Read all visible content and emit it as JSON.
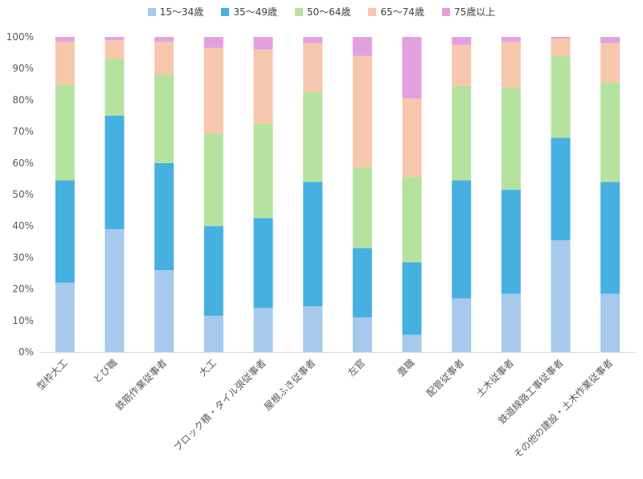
{
  "chart_data": {
    "type": "bar",
    "stacked": true,
    "categories": [
      "型枠大工",
      "とび職",
      "鉄筋作業従事者",
      "大工",
      "ブロック積・タイル張従事者",
      "屋根ふき従事者",
      "左官",
      "畳職",
      "配管従事者",
      "土木従事者",
      "鉄道線路工事従事者",
      "その他の建設・土木作業従事者"
    ],
    "series": [
      {
        "name": "15～34歳",
        "color": "#a6c9ec",
        "values": [
          22,
          39,
          26,
          11.5,
          14,
          14.5,
          11,
          5.5,
          17,
          18.5,
          35.5,
          18.5
        ]
      },
      {
        "name": "35～49歳",
        "color": "#46b0e1",
        "values": [
          32.5,
          36,
          34,
          28.5,
          28.5,
          39.5,
          22,
          23,
          37.5,
          33,
          32.5,
          35.5
        ]
      },
      {
        "name": "50～64歳",
        "color": "#b6e2a0",
        "values": [
          30.5,
          18,
          28,
          29.5,
          30,
          28.5,
          25.5,
          27,
          30,
          32.5,
          26,
          31.5
        ]
      },
      {
        "name": "65～74歳",
        "color": "#f7c7ad",
        "values": [
          13.5,
          6,
          10.5,
          27,
          23.5,
          15.5,
          35.5,
          25,
          13,
          14.5,
          5.5,
          12.5
        ]
      },
      {
        "name": "75歳以上",
        "color": "#e2a1de",
        "values": [
          1.5,
          1,
          1.5,
          3.5,
          4,
          2,
          6,
          19.5,
          2.5,
          1.5,
          0.5,
          2
        ]
      }
    ],
    "yticks": [
      "0%",
      "10%",
      "20%",
      "30%",
      "40%",
      "50%",
      "60%",
      "70%",
      "80%",
      "90%",
      "100%"
    ],
    "ylim": [
      0,
      100
    ],
    "grid": false,
    "legend_position": "top"
  }
}
